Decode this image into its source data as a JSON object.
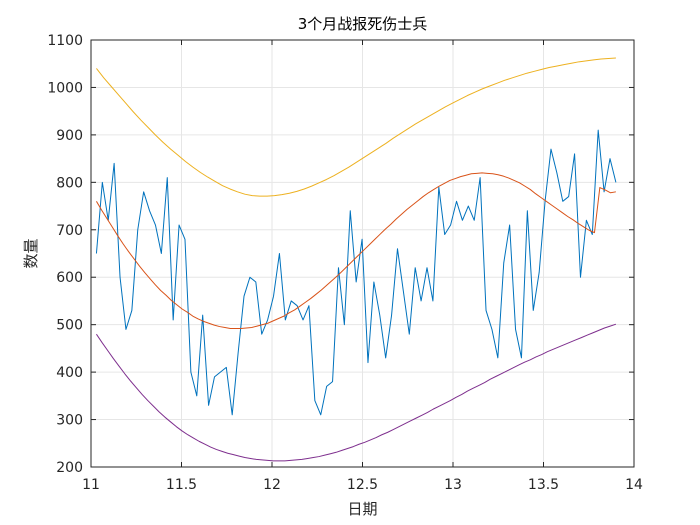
{
  "chart_data": {
    "type": "line",
    "title": "3个月战报死伤士兵",
    "xlabel": "日期",
    "ylabel": "数量",
    "xlim": [
      11,
      14
    ],
    "ylim": [
      200,
      1100
    ],
    "xticks": [
      11,
      11.5,
      12,
      12.5,
      13,
      13.5,
      14
    ],
    "xtick_labels": [
      "11",
      "11.5",
      "12",
      "12.5",
      "13",
      "13.5",
      "14"
    ],
    "yticks": [
      200,
      300,
      400,
      500,
      600,
      700,
      800,
      900,
      1000,
      1100
    ],
    "ytick_labels": [
      "200",
      "300",
      "400",
      "500",
      "600",
      "700",
      "800",
      "900",
      "1000",
      "1100"
    ],
    "grid": true,
    "legend": false,
    "x_range": [
      11.03,
      13.9
    ],
    "series": [
      {
        "color": "#0072BD",
        "values": [
          650,
          800,
          720,
          840,
          600,
          490,
          530,
          700,
          780,
          740,
          710,
          650,
          810,
          510,
          710,
          680,
          400,
          350,
          520,
          330,
          390,
          400,
          410,
          310,
          440,
          560,
          600,
          590,
          480,
          510,
          560,
          650,
          510,
          550,
          540,
          510,
          540,
          340,
          310,
          370,
          380,
          620,
          500,
          740,
          590,
          680,
          420,
          590,
          520,
          430,
          520,
          660,
          570,
          480,
          620,
          550,
          620,
          550,
          790,
          690,
          710,
          760,
          720,
          750,
          720,
          810,
          530,
          490,
          430,
          630,
          710,
          490,
          430,
          740,
          530,
          610,
          760,
          870,
          820,
          760,
          770,
          860,
          600,
          720,
          690,
          910,
          780,
          850,
          800
        ]
      },
      {
        "color": "#D95319",
        "values": [
          760,
          741,
          723,
          705,
          687,
          670,
          654,
          639,
          624,
          610,
          597,
          584,
          572,
          562,
          551,
          542,
          533,
          526,
          518,
          512,
          507,
          503,
          499,
          496,
          494,
          492,
          492,
          492,
          493,
          494,
          497,
          500,
          503,
          508,
          513,
          518,
          525,
          531,
          539,
          547,
          555,
          564,
          573,
          583,
          593,
          603,
          614,
          625,
          636,
          647,
          658,
          669,
          680,
          691,
          702,
          712,
          723,
          733,
          743,
          752,
          761,
          770,
          778,
          785,
          792,
          798,
          804,
          808,
          812,
          815,
          818,
          819,
          820,
          819,
          818,
          816,
          813,
          809,
          804,
          799,
          792,
          785,
          776,
          768,
          760,
          752,
          744,
          736,
          728,
          721,
          713,
          706,
          699,
          694,
          789,
          784,
          778,
          780
        ]
      },
      {
        "color": "#EDB120",
        "values": [
          1040,
          1020,
          1002,
          984,
          966,
          948,
          931,
          915,
          899,
          884,
          870,
          857,
          844,
          832,
          821,
          811,
          802,
          793,
          786,
          780,
          775,
          772,
          771,
          771,
          772,
          774,
          777,
          781,
          786,
          792,
          799,
          806,
          814,
          823,
          832,
          842,
          852,
          862,
          872,
          882,
          893,
          903,
          913,
          923,
          932,
          941,
          950,
          959,
          967,
          975,
          983,
          990,
          997,
          1003,
          1009,
          1015,
          1020,
          1025,
          1030,
          1034,
          1038,
          1042,
          1045,
          1048,
          1051,
          1054,
          1056,
          1058,
          1060,
          1061,
          1062
        ]
      },
      {
        "color": "#7E2F8E",
        "values": [
          480,
          462,
          445,
          428,
          412,
          396,
          381,
          367,
          353,
          340,
          328,
          316,
          305,
          295,
          285,
          276,
          268,
          261,
          254,
          248,
          242,
          237,
          233,
          229,
          226,
          223,
          220,
          218,
          216,
          215,
          214,
          213,
          213,
          213,
          214,
          215,
          216,
          218,
          220,
          222,
          225,
          228,
          231,
          235,
          239,
          243,
          248,
          252,
          257,
          262,
          268,
          273,
          279,
          285,
          291,
          297,
          303,
          309,
          315,
          322,
          328,
          334,
          340,
          347,
          353,
          360,
          366,
          372,
          378,
          385,
          391,
          397,
          403,
          409,
          415,
          421,
          426,
          432,
          437,
          443,
          448,
          453,
          458,
          463,
          468,
          473,
          478,
          483,
          488,
          493,
          497,
          501
        ]
      }
    ]
  }
}
